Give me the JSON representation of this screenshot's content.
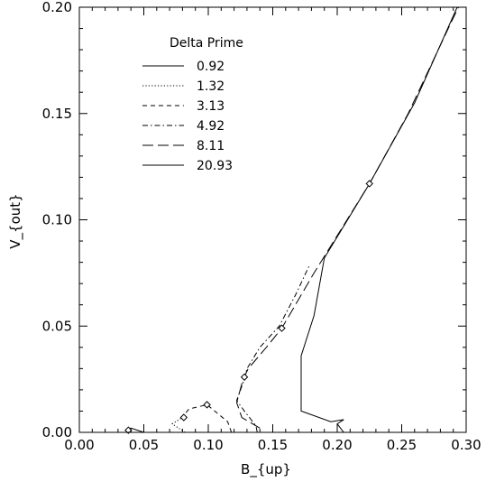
{
  "chart_data": {
    "type": "line",
    "title": "",
    "xlabel": "B_{up}",
    "ylabel": "V_{out}",
    "xlim": [
      0.0,
      0.3
    ],
    "ylim": [
      0.0,
      0.2
    ],
    "xticks": [
      "0.00",
      "0.05",
      "0.10",
      "0.15",
      "0.20",
      "0.25",
      "0.30"
    ],
    "yticks": [
      "0.00",
      "0.05",
      "0.10",
      "0.15",
      "0.20"
    ],
    "grid": false,
    "legend_title": "Delta Prime",
    "legend_position": "upper-left",
    "series": [
      {
        "name": "0.92",
        "dash": "solid",
        "points": [
          [
            0.037,
            0.001
          ],
          [
            0.04,
            0.002
          ],
          [
            0.045,
            0.001
          ],
          [
            0.05,
            0.0
          ],
          [
            0.055,
            0.0
          ]
        ]
      },
      {
        "name": "1.32",
        "dash": "dotted",
        "points": [
          [
            0.082,
            0.0
          ],
          [
            0.072,
            0.004
          ],
          [
            0.08,
            0.007
          ],
          [
            0.081,
            0.008
          ]
        ]
      },
      {
        "name": "3.13",
        "dash": "dashed",
        "points": [
          [
            0.118,
            0.0
          ],
          [
            0.115,
            0.005
          ],
          [
            0.105,
            0.01
          ],
          [
            0.099,
            0.013
          ],
          [
            0.085,
            0.011
          ],
          [
            0.081,
            0.008
          ]
        ]
      },
      {
        "name": "4.92",
        "dash": "dash-dot",
        "points": [
          [
            0.138,
            0.0
          ],
          [
            0.137,
            0.003
          ],
          [
            0.128,
            0.01
          ],
          [
            0.122,
            0.015
          ],
          [
            0.128,
            0.025
          ],
          [
            0.13,
            0.03
          ],
          [
            0.14,
            0.04
          ],
          [
            0.155,
            0.05
          ],
          [
            0.168,
            0.065
          ],
          [
            0.178,
            0.078
          ]
        ]
      },
      {
        "name": "8.11",
        "dash": "long-dash",
        "points": [
          [
            0.14,
            0.002
          ],
          [
            0.126,
            0.007
          ],
          [
            0.122,
            0.014
          ],
          [
            0.127,
            0.025
          ],
          [
            0.131,
            0.03
          ],
          [
            0.145,
            0.04
          ],
          [
            0.157,
            0.049
          ],
          [
            0.182,
            0.075
          ],
          [
            0.225,
            0.117
          ],
          [
            0.255,
            0.15
          ],
          [
            0.29,
            0.195
          ],
          [
            0.295,
            0.201
          ]
        ]
      },
      {
        "name": "20.93",
        "dash": "solid",
        "points": [
          [
            0.205,
            0.0
          ],
          [
            0.2,
            0.004
          ],
          [
            0.205,
            0.006
          ],
          [
            0.195,
            0.005
          ],
          [
            0.172,
            0.01
          ],
          [
            0.172,
            0.036
          ],
          [
            0.182,
            0.055
          ],
          [
            0.19,
            0.082
          ],
          [
            0.225,
            0.117
          ],
          [
            0.26,
            0.155
          ],
          [
            0.293,
            0.2
          ]
        ]
      }
    ],
    "markers": [
      {
        "x": 0.038,
        "y": 0.001
      },
      {
        "x": 0.081,
        "y": 0.007
      },
      {
        "x": 0.099,
        "y": 0.013
      },
      {
        "x": 0.128,
        "y": 0.026
      },
      {
        "x": 0.157,
        "y": 0.049
      },
      {
        "x": 0.225,
        "y": 0.117
      }
    ]
  }
}
